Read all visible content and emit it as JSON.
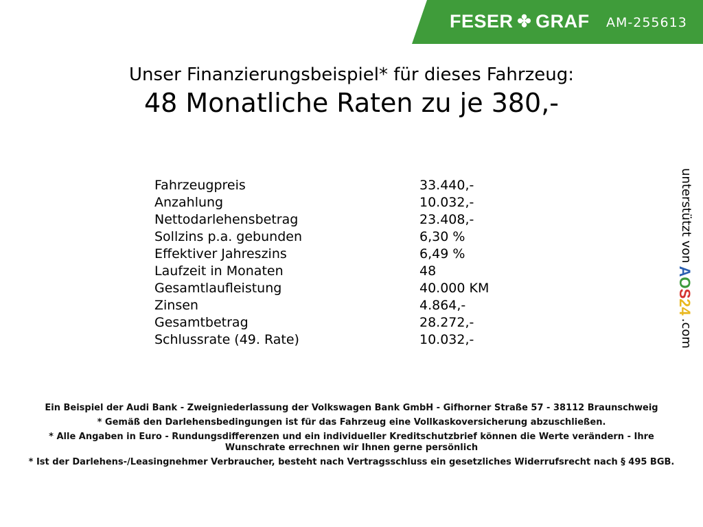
{
  "header": {
    "brand_left": "FESER",
    "brand_right": "GRAF",
    "ad_code": "AM-255613",
    "brand_color": "#3f9c3a",
    "logo_icon": "clover-icon"
  },
  "title": {
    "line1": "Unser Finanzierungsbeispiel* für dieses Fahrzeug:",
    "line2": "48 Monatliche Raten zu je 380,-"
  },
  "rows": [
    {
      "label": "Fahrzeugpreis",
      "value": "33.440,-"
    },
    {
      "label": "Anzahlung",
      "value": "10.032,-"
    },
    {
      "label": "Nettodarlehensbetrag",
      "value": "23.408,-"
    },
    {
      "label": "Sollzins p.a. gebunden",
      "value": "6,30 %"
    },
    {
      "label": "Effektiver Jahreszins",
      "value": "6,49 %"
    },
    {
      "label": "Laufzeit in Monaten",
      "value": "48"
    },
    {
      "label": "Gesamtlaufleistung",
      "value": "40.000 KM"
    },
    {
      "label": "Zinsen",
      "value": "4.864,-"
    },
    {
      "label": "Gesamtbetrag",
      "value": "28.272,-"
    },
    {
      "label": "Schlussrate (49. Rate)",
      "value": "10.032,-"
    }
  ],
  "footer": [
    "Ein Beispiel der Audi Bank - Zweigniederlassung der Volkswagen Bank GmbH - Gifhorner Straße 57 - 38112 Braunschweig",
    "* Gemäß den Darlehensbedingungen ist für das Fahrzeug eine Vollkaskoversicherung abzuschließen.",
    "* Alle Angaben in Euro - Rundungsdifferenzen und ein individueller Kreditschutzbrief können die Werte verändern - Ihre Wunschrate errechnen wir Ihnen gerne persönlich",
    "* Ist der Darlehens-/Leasingnehmer Verbraucher, besteht nach Vertragsschluss ein gesetzliches Widerrufsrecht nach § 495 BGB."
  ],
  "side": {
    "text": "unterstützt von",
    "logo": "AOS24",
    "suffix": ".com"
  }
}
